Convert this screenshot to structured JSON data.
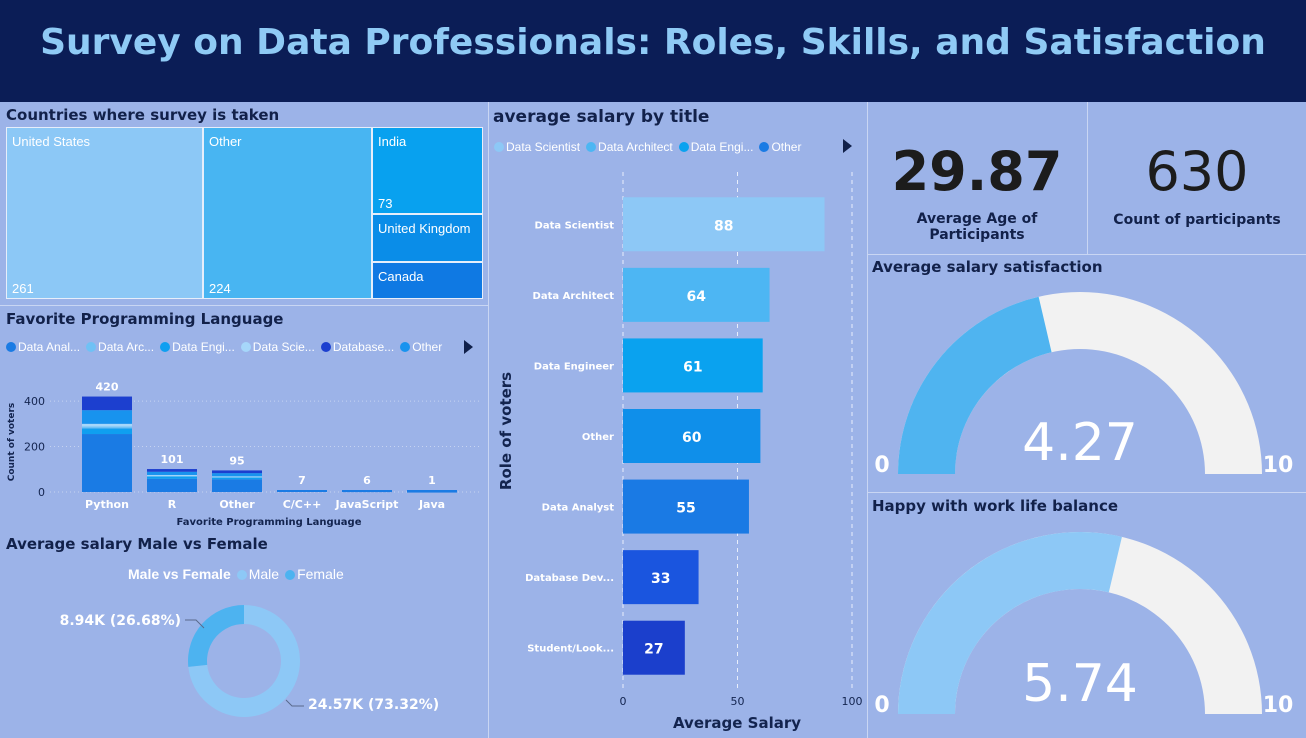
{
  "header": {
    "title": "Survey on Data Professionals: Roles, Skills, and Satisfaction"
  },
  "treemap": {
    "title": "Countries where survey is taken",
    "tiles": [
      {
        "name": "United States",
        "value": "261",
        "color": "#8cc8f6"
      },
      {
        "name": "Other",
        "value": "224",
        "color": "#48b5f2"
      },
      {
        "name": "India",
        "value": "73",
        "color": "#08a1ef"
      },
      {
        "name": "United Kingdom",
        "value": "",
        "color": "#0a8de8"
      },
      {
        "name": "Canada",
        "value": "",
        "color": "#0f79e3"
      }
    ]
  },
  "language": {
    "title": "Favorite Programming Language",
    "legend": [
      {
        "label": "Data Anal...",
        "color": "#1a7be4"
      },
      {
        "label": "Data Arc...",
        "color": "#6fc1f5"
      },
      {
        "label": "Data Engi...",
        "color": "#0f9ff0"
      },
      {
        "label": "Data Scie...",
        "color": "#a6d7fa"
      },
      {
        "label": "Database...",
        "color": "#1c3fcf"
      },
      {
        "label": "Other",
        "color": "#1893ee"
      }
    ]
  },
  "salary_title": {
    "title": "average salary by title",
    "legend": [
      {
        "label": "Data Scientist",
        "color": "#8dc8f6"
      },
      {
        "label": "Data Architect",
        "color": "#4cb6f3"
      },
      {
        "label": "Data Engi...",
        "color": "#0aa2ef"
      },
      {
        "label": "Other",
        "color": "#1a7be4"
      }
    ]
  },
  "kpis": {
    "age": {
      "value": "29.87",
      "label": "Average Age of Participants"
    },
    "count": {
      "value": "630",
      "label": "Count of participants"
    }
  },
  "gender": {
    "title": "Average salary Male vs Female",
    "legend_title": "Male vs Female",
    "legend": [
      {
        "label": "Male",
        "color": "#8dc8f6"
      },
      {
        "label": "Female",
        "color": "#4db3f0"
      }
    ]
  },
  "gauges": {
    "satisfaction": {
      "title": "Average salary satisfaction",
      "value": "4.27",
      "min": "0",
      "max": "10",
      "color": "#4fb4f0"
    },
    "worklife": {
      "title": "Happy with work life balance",
      "value": "5.74",
      "min": "0",
      "max": "10",
      "color": "#8dc8f6"
    }
  },
  "colors": {
    "gauge_track": "#f2f2f2",
    "header_bg": "#0b1d56",
    "page_bg": "#9cb3e8"
  },
  "chart_data": [
    {
      "type": "treemap",
      "title": "Countries where survey is taken",
      "categories": [
        "United States",
        "Other",
        "India",
        "United Kingdom",
        "Canada"
      ],
      "values": [
        261,
        224,
        73,
        null,
        null
      ]
    },
    {
      "type": "bar",
      "title": "Favorite Programming Language",
      "stacked": true,
      "categories": [
        "Python",
        "R",
        "Other",
        "C/C++",
        "JavaScript",
        "Java"
      ],
      "totals": [
        420,
        101,
        95,
        7,
        6,
        1
      ],
      "series": [
        {
          "name": "Data Anal...",
          "values": [
            255,
            58,
            56,
            4,
            3,
            1
          ]
        },
        {
          "name": "Data Arc...",
          "values": [
            8,
            3,
            2,
            0,
            0,
            0
          ]
        },
        {
          "name": "Data Engi...",
          "values": [
            25,
            10,
            8,
            1,
            1,
            0
          ]
        },
        {
          "name": "Data Scie...",
          "values": [
            12,
            4,
            3,
            0,
            0,
            0
          ]
        },
        {
          "name": "Database...",
          "values": [
            60,
            12,
            12,
            1,
            1,
            0
          ]
        },
        {
          "name": "Other",
          "values": [
            60,
            14,
            14,
            1,
            1,
            0
          ]
        }
      ],
      "xlabel": "Favorite Programming Language",
      "ylabel": "Count of voters",
      "ylim": [
        0,
        440
      ],
      "yticks": [
        0,
        200,
        400
      ],
      "grid": true
    },
    {
      "type": "bar",
      "orientation": "horizontal",
      "title": "average salary by title",
      "categories": [
        "Data Scientist",
        "Data Architect",
        "Data Engineer",
        "Other",
        "Data Analyst",
        "Database Dev...",
        "Student/Look..."
      ],
      "values": [
        88,
        64,
        61,
        60,
        55,
        33,
        27
      ],
      "colors": [
        "#8dc8f6",
        "#4db6f3",
        "#0aa2ef",
        "#0f8fea",
        "#1a7ae4",
        "#1a55df",
        "#1b3fcc"
      ],
      "xlabel": "Average Salary",
      "ylabel": "Role of voters",
      "xlim": [
        0,
        100
      ],
      "xticks": [
        0,
        50,
        100
      ],
      "grid": true
    },
    {
      "type": "pie",
      "title": "Average salary Male vs Female",
      "categories": [
        "Male",
        "Female"
      ],
      "values": [
        24570,
        8940
      ],
      "labels": [
        "24.57K (73.32%)",
        "8.94K (26.68%)"
      ],
      "colors": [
        "#8dc8f6",
        "#4db3f0"
      ],
      "donut": true
    },
    {
      "type": "gauge",
      "title": "Average salary satisfaction",
      "value": 4.27,
      "min": 0,
      "max": 10
    },
    {
      "type": "gauge",
      "title": "Happy with work life balance",
      "value": 5.74,
      "min": 0,
      "max": 10
    }
  ]
}
